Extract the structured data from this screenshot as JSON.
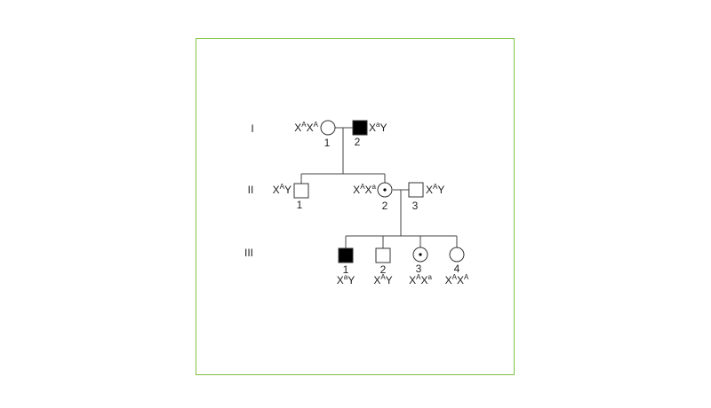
{
  "pedigree": {
    "frame_color": "#7dc242",
    "generations": [
      "I",
      "II",
      "III"
    ],
    "individuals": {
      "I-1": {
        "number": "1",
        "genotype": [
          [
            "X",
            "A"
          ],
          [
            "X",
            "A"
          ]
        ],
        "sex": "female",
        "status": "unaffected"
      },
      "I-2": {
        "number": "2",
        "genotype": [
          [
            "X",
            "a"
          ],
          [
            "Y",
            ""
          ]
        ],
        "sex": "male",
        "status": "affected"
      },
      "II-1": {
        "number": "1",
        "genotype": [
          [
            "X",
            "A"
          ],
          [
            "Y",
            ""
          ]
        ],
        "sex": "male",
        "status": "unaffected"
      },
      "II-2": {
        "number": "2",
        "genotype": [
          [
            "X",
            "A"
          ],
          [
            "X",
            "a"
          ]
        ],
        "sex": "female",
        "status": "carrier"
      },
      "II-3": {
        "number": "3",
        "genotype": [
          [
            "X",
            "A"
          ],
          [
            "Y",
            ""
          ]
        ],
        "sex": "male",
        "status": "unaffected"
      },
      "III-1": {
        "number": "1",
        "genotype": [
          [
            "X",
            "a"
          ],
          [
            "Y",
            ""
          ]
        ],
        "sex": "male",
        "status": "affected"
      },
      "III-2": {
        "number": "2",
        "genotype": [
          [
            "X",
            "A"
          ],
          [
            "Y",
            ""
          ]
        ],
        "sex": "male",
        "status": "unaffected"
      },
      "III-3": {
        "number": "3",
        "genotype": [
          [
            "X",
            "A"
          ],
          [
            "X",
            "a"
          ]
        ],
        "sex": "female",
        "status": "carrier"
      },
      "III-4": {
        "number": "4",
        "genotype": [
          [
            "X",
            "A"
          ],
          [
            "X",
            "A"
          ]
        ],
        "sex": "female",
        "status": "unaffected"
      }
    }
  }
}
